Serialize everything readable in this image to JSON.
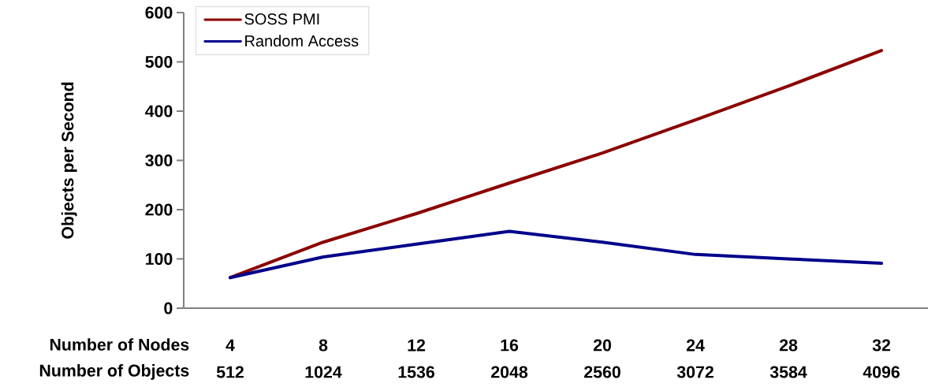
{
  "chart_data": {
    "type": "line",
    "categories": [
      "4",
      "8",
      "12",
      "16",
      "20",
      "24",
      "28",
      "32"
    ],
    "xlabel": "Number of Nodes",
    "ylabel": "Objects per Second",
    "series": [
      {
        "name": "SOSS PMI",
        "color": "#8b0000",
        "values": [
          62,
          134,
          192,
          254,
          315,
          382,
          451,
          523
        ]
      },
      {
        "name": "Random Access",
        "color": "#00008b",
        "values": [
          62,
          104,
          130,
          156,
          134,
          109,
          100,
          91
        ]
      }
    ],
    "ylim": [
      0,
      600
    ],
    "yticks": [
      0,
      100,
      200,
      300,
      400,
      500,
      600
    ],
    "legend": "top left",
    "annotations": [
      "Number of Objects",
      "512",
      "1024",
      "1536",
      "2048",
      "2560",
      "3072",
      "3584",
      "4096"
    ]
  }
}
